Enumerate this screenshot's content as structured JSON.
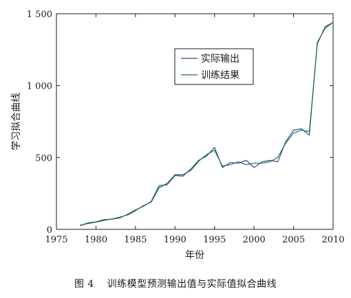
{
  "chart_data": {
    "type": "line",
    "title": "",
    "xlabel": "年份",
    "ylabel": "学习拟合曲线",
    "xlim": [
      1975,
      2010
    ],
    "ylim": [
      0,
      1500
    ],
    "xticks": [
      1975,
      1980,
      1985,
      1990,
      1995,
      2000,
      2005,
      2010
    ],
    "xtick_labels": [
      "1975",
      "1980",
      "1985",
      "1990",
      "1995",
      "2000",
      "2005",
      "2010"
    ],
    "yticks": [
      0,
      500,
      1000,
      1500
    ],
    "ytick_labels": [
      "0",
      "500",
      "1 000",
      "1 500"
    ],
    "grid": false,
    "legend_position": "upper-center",
    "series": [
      {
        "name": "实际输出",
        "color": "#2a4f8f",
        "x": [
          1978,
          1979,
          1980,
          1981,
          1982,
          1983,
          1984,
          1985,
          1986,
          1987,
          1988,
          1989,
          1990,
          1991,
          1992,
          1993,
          1994,
          1995,
          1996,
          1997,
          1998,
          1999,
          2000,
          2001,
          2002,
          2003,
          2004,
          2005,
          2006,
          2007,
          2008,
          2009,
          2010
        ],
        "values": [
          25,
          45,
          52,
          68,
          70,
          80,
          105,
          135,
          160,
          195,
          305,
          310,
          375,
          370,
          420,
          480,
          510,
          570,
          430,
          465,
          460,
          480,
          430,
          470,
          480,
          470,
          610,
          690,
          700,
          655,
          1300,
          1400,
          1440
        ]
      },
      {
        "name": "训练结果",
        "color": "#1f6b54",
        "x": [
          1978,
          1979,
          1980,
          1981,
          1982,
          1983,
          1984,
          1985,
          1986,
          1987,
          1988,
          1989,
          1990,
          1991,
          1992,
          1993,
          1994,
          1995,
          1996,
          1997,
          1998,
          1999,
          2000,
          2001,
          2002,
          2003,
          2004,
          2005,
          2006,
          2007,
          2008,
          2009,
          2010
        ],
        "values": [
          30,
          40,
          50,
          62,
          72,
          85,
          100,
          130,
          165,
          190,
          290,
          320,
          380,
          380,
          410,
          475,
          520,
          550,
          440,
          450,
          470,
          450,
          460,
          460,
          470,
          500,
          600,
          670,
          690,
          680,
          1290,
          1410,
          1440
        ]
      }
    ]
  },
  "caption": {
    "figure_number": "图 4",
    "text": "训练模型预测输出值与实际值拟合曲线"
  }
}
